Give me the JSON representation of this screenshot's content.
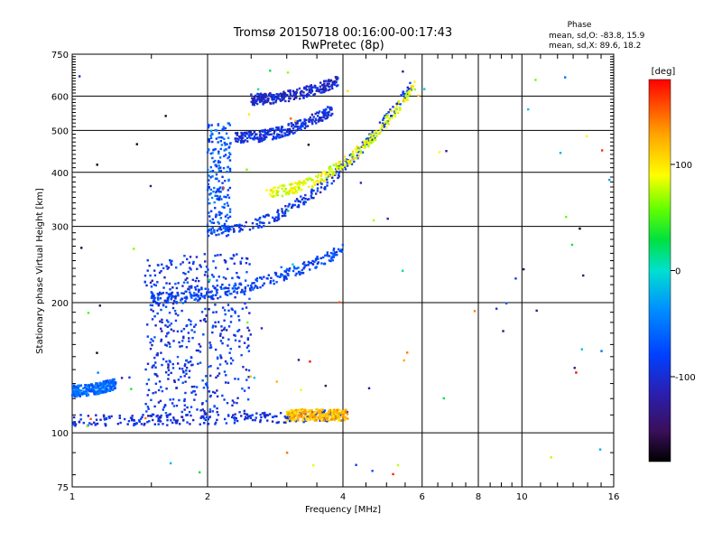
{
  "chart_data": {
    "type": "scatter",
    "title": "Tromsø 20150718 00:16:00-00:17:43",
    "subtitle": "RwPretec (8p)",
    "xlabel": "Frequency [MHz]",
    "ylabel": "Stationary phase Virtual Height [km]",
    "x_scale": "log",
    "y_scale": "log",
    "xlim": [
      1,
      16
    ],
    "ylim": [
      75,
      750
    ],
    "x_ticks": [
      "1",
      "2",
      "4",
      "6",
      "8",
      "10",
      "16"
    ],
    "x_tick_values": [
      1,
      2,
      4,
      6,
      8,
      10,
      16
    ],
    "y_ticks": [
      "75",
      "100",
      "200",
      "300",
      "400",
      "500",
      "600",
      "750"
    ],
    "y_tick_values": [
      75,
      100,
      200,
      300,
      400,
      500,
      600,
      750
    ],
    "x_minor_ticks": [
      1.5,
      2.5,
      3,
      3.5,
      4.5,
      5,
      5.5,
      6.5,
      7,
      7.5,
      8.5,
      9,
      9.5,
      11,
      12,
      13,
      14,
      15
    ],
    "x_gridlines": [
      2,
      4,
      6,
      8,
      10
    ],
    "y_gridlines": [
      100,
      200,
      300,
      400,
      500,
      600
    ],
    "grid": true,
    "stats": {
      "heading": "Phase",
      "o_line": "mean, sd,O: -83.8, 15.9",
      "x_line": "mean, sd,X: 89.6, 18.2"
    },
    "colorbar": {
      "label": "[deg]",
      "min": -180,
      "max": 180,
      "ticks": [
        "100",
        "0",
        "-100"
      ],
      "tick_values": [
        100,
        0,
        -100
      ],
      "colormap": "rainbow (black-purple-blue-cyan-green-yellow-red)"
    },
    "traces": [
      {
        "desc": "E-layer trace",
        "x_start": 1.0,
        "x_end": 4.1,
        "y_start": 107,
        "y_end": 110,
        "phase": -95
      },
      {
        "desc": "E-layer high-frequency segment",
        "x_start": 3.0,
        "x_end": 4.1,
        "y_start": 110,
        "y_end": 110,
        "phase": 120
      },
      {
        "desc": "low spread segment",
        "x_start": 1.0,
        "x_end": 1.25,
        "y_start": 125,
        "y_end": 130,
        "phase": -60
      },
      {
        "desc": "F-region O trace",
        "x_start": 2.0,
        "x_end": 5.7,
        "y_start": 290,
        "y_end": 640,
        "phase": -90
      },
      {
        "desc": "F-region X trace",
        "x_start": 2.7,
        "x_end": 5.8,
        "y_start": 360,
        "y_end": 640,
        "phase": 90
      },
      {
        "desc": "spread echoes around 200-260 km",
        "x_start": 1.5,
        "x_end": 4.0,
        "y_start": 205,
        "y_end": 265,
        "phase": -80
      },
      {
        "desc": "band near 600 km",
        "x_start": 2.5,
        "x_end": 3.9,
        "y_start": 590,
        "y_end": 650,
        "phase": -105
      },
      {
        "desc": "band near 500 km",
        "x_start": 2.3,
        "x_end": 3.8,
        "y_start": 480,
        "y_end": 560,
        "phase": -95
      }
    ]
  }
}
